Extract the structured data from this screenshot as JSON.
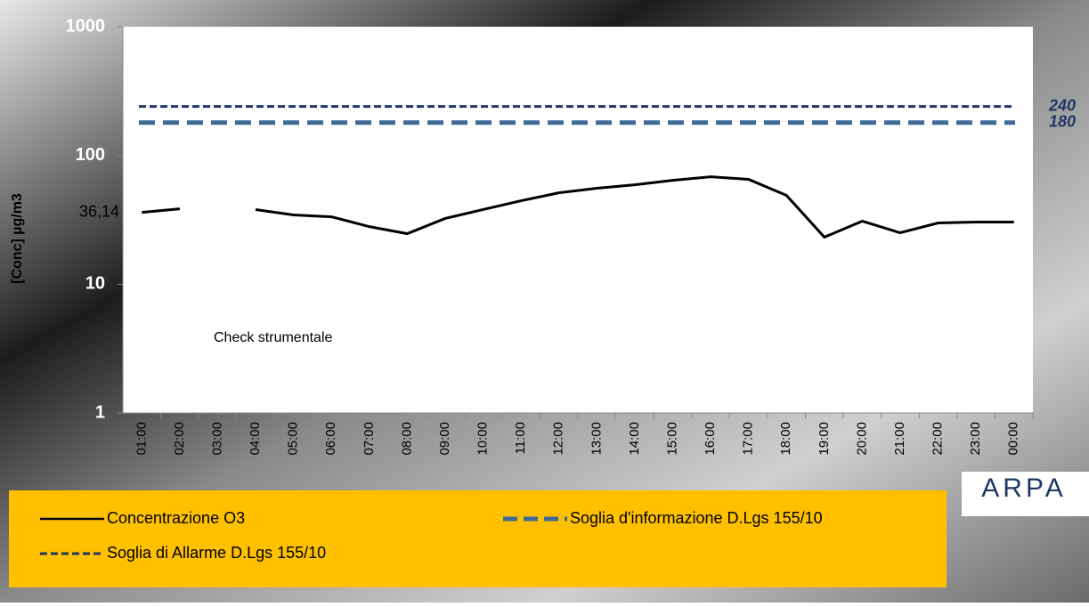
{
  "chart_data": {
    "type": "line",
    "y_label": "[Conc] µg/m3",
    "categories": [
      "01:00",
      "02:00",
      "03:00",
      "04:00",
      "05:00",
      "06:00",
      "07:00",
      "08:00",
      "09:00",
      "10:00",
      "11:00",
      "12:00",
      "13:00",
      "14:00",
      "15:00",
      "16:00",
      "17:00",
      "18:00",
      "19:00",
      "20:00",
      "21:00",
      "22:00",
      "23:00",
      "00:00"
    ],
    "series": [
      {
        "name": "Concentrazione O3",
        "color": "#000000",
        "values": [
          36.14,
          38.5,
          null,
          38,
          34.5,
          33.4,
          28,
          24.7,
          32.4,
          38,
          44.5,
          51.3,
          55.6,
          59.2,
          64.1,
          68.3,
          65.2,
          49,
          23.2,
          30.9,
          25.1,
          29.9,
          30.4,
          30.4
        ]
      }
    ],
    "reference_lines": [
      {
        "name": "Soglia d'informazione D.Lgs 155/10",
        "value": 180,
        "color": "#3f6a96",
        "dash": "long"
      },
      {
        "name": "Soglia di Allarme D.Lgs 155/10",
        "value": 240,
        "color": "#1f3864",
        "dash": "short"
      }
    ],
    "marker_label": {
      "value": 36.14,
      "label": "36,14"
    },
    "annotation": "Check strumentale",
    "log_scale": true,
    "ylim": [
      1,
      1000
    ],
    "yticks": [
      1,
      10,
      100,
      1000
    ],
    "logo": "ARPA"
  }
}
